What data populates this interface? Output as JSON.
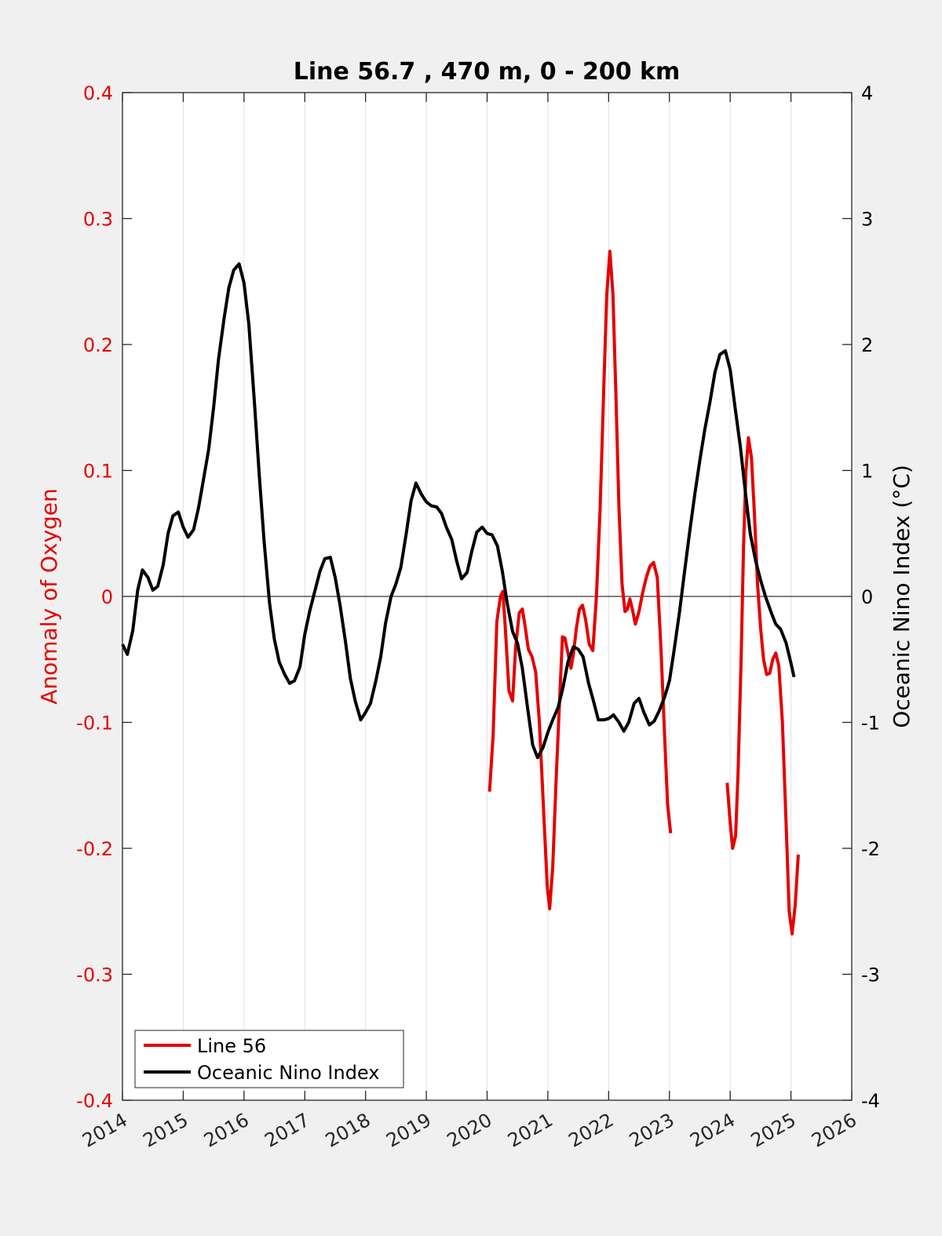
{
  "chart_data": {
    "type": "line",
    "title": "Line 56.7 , 470 m, 0 - 200 km",
    "ylabel_left": "Anomaly of Oxygen",
    "ylabel_right": "Oceanic Nino Index (°C)",
    "xlabel": "",
    "xlim": [
      2014,
      2026
    ],
    "ylim_left": [
      -0.4,
      0.4
    ],
    "ylim_right": [
      -4,
      4
    ],
    "x_ticks": [
      "2014",
      "2015",
      "2016",
      "2017",
      "2018",
      "2019",
      "2020",
      "2021",
      "2022",
      "2023",
      "2024",
      "2025",
      "2026"
    ],
    "y_ticks_left": [
      "0.4",
      "0.3",
      "0.2",
      "0.1",
      "0",
      "-0.1",
      "-0.2",
      "-0.3",
      "-0.4"
    ],
    "y_ticks_right": [
      "4",
      "3",
      "2",
      "1",
      "0",
      "-1",
      "-2",
      "-3",
      "-4"
    ],
    "grid": "vertical",
    "legend_position": "bottom-left",
    "colors": {
      "line56": "#e60000",
      "oni": "#000000",
      "left_axis": "#e60000"
    },
    "series": [
      {
        "name": "Line 56",
        "axis": "left",
        "color": "#e60000",
        "segments": [
          [
            [
              2020.04,
              -0.155
            ],
            [
              2020.1,
              -0.11
            ],
            [
              2020.16,
              -0.02
            ],
            [
              2020.22,
              0.0
            ],
            [
              2020.26,
              0.004
            ],
            [
              2020.3,
              -0.025
            ],
            [
              2020.36,
              -0.075
            ],
            [
              2020.42,
              -0.083
            ],
            [
              2020.47,
              -0.04
            ],
            [
              2020.53,
              -0.013
            ],
            [
              2020.58,
              -0.01
            ],
            [
              2020.62,
              -0.022
            ],
            [
              2020.68,
              -0.042
            ],
            [
              2020.74,
              -0.048
            ],
            [
              2020.8,
              -0.06
            ],
            [
              2020.86,
              -0.1
            ],
            [
              2020.93,
              -0.17
            ],
            [
              2020.99,
              -0.23
            ],
            [
              2021.03,
              -0.248
            ],
            [
              2021.08,
              -0.215
            ],
            [
              2021.14,
              -0.14
            ],
            [
              2021.2,
              -0.075
            ],
            [
              2021.24,
              -0.032
            ],
            [
              2021.28,
              -0.033
            ],
            [
              2021.33,
              -0.045
            ],
            [
              2021.38,
              -0.057
            ],
            [
              2021.42,
              -0.046
            ],
            [
              2021.47,
              -0.025
            ],
            [
              2021.52,
              -0.01
            ],
            [
              2021.57,
              -0.007
            ],
            [
              2021.62,
              -0.018
            ],
            [
              2021.68,
              -0.038
            ],
            [
              2021.74,
              -0.043
            ],
            [
              2021.8,
              -0.0
            ],
            [
              2021.86,
              0.07
            ],
            [
              2021.92,
              0.165
            ],
            [
              2021.97,
              0.24
            ],
            [
              2022.02,
              0.274
            ],
            [
              2022.07,
              0.24
            ],
            [
              2022.12,
              0.16
            ],
            [
              2022.17,
              0.07
            ],
            [
              2022.22,
              0.01
            ],
            [
              2022.27,
              -0.012
            ],
            [
              2022.31,
              -0.01
            ],
            [
              2022.35,
              -0.002
            ],
            [
              2022.39,
              -0.01
            ],
            [
              2022.44,
              -0.022
            ],
            [
              2022.5,
              -0.012
            ],
            [
              2022.56,
              0.003
            ],
            [
              2022.62,
              0.015
            ],
            [
              2022.68,
              0.024
            ],
            [
              2022.74,
              0.027
            ],
            [
              2022.8,
              0.015
            ],
            [
              2022.86,
              -0.04
            ],
            [
              2022.92,
              -0.11
            ],
            [
              2022.97,
              -0.165
            ],
            [
              2023.02,
              -0.188
            ]
          ],
          [
            [
              2023.95,
              -0.148
            ],
            [
              2024.0,
              -0.18
            ],
            [
              2024.04,
              -0.2
            ],
            [
              2024.09,
              -0.19
            ],
            [
              2024.13,
              -0.14
            ],
            [
              2024.18,
              -0.05
            ],
            [
              2024.22,
              0.04
            ],
            [
              2024.26,
              0.1
            ],
            [
              2024.3,
              0.126
            ],
            [
              2024.35,
              0.11
            ],
            [
              2024.4,
              0.065
            ],
            [
              2024.45,
              0.01
            ],
            [
              2024.5,
              -0.025
            ],
            [
              2024.55,
              -0.05
            ],
            [
              2024.6,
              -0.062
            ],
            [
              2024.65,
              -0.061
            ],
            [
              2024.7,
              -0.05
            ],
            [
              2024.75,
              -0.045
            ],
            [
              2024.8,
              -0.055
            ],
            [
              2024.86,
              -0.1
            ],
            [
              2024.92,
              -0.18
            ],
            [
              2024.97,
              -0.25
            ],
            [
              2025.02,
              -0.268
            ],
            [
              2025.07,
              -0.245
            ],
            [
              2025.12,
              -0.205
            ]
          ]
        ]
      },
      {
        "name": "Oceanic Nino Index",
        "axis": "right",
        "color": "#000000",
        "segments": [
          [
            [
              2014.0,
              -0.38
            ],
            [
              2014.08,
              -0.46
            ],
            [
              2014.17,
              -0.27
            ],
            [
              2014.25,
              0.05
            ],
            [
              2014.33,
              0.21
            ],
            [
              2014.42,
              0.15
            ],
            [
              2014.5,
              0.05
            ],
            [
              2014.58,
              0.08
            ],
            [
              2014.67,
              0.25
            ],
            [
              2014.75,
              0.5
            ],
            [
              2014.83,
              0.64
            ],
            [
              2014.92,
              0.67
            ],
            [
              2015.0,
              0.55
            ],
            [
              2015.08,
              0.47
            ],
            [
              2015.17,
              0.53
            ],
            [
              2015.25,
              0.7
            ],
            [
              2015.33,
              0.92
            ],
            [
              2015.42,
              1.17
            ],
            [
              2015.5,
              1.5
            ],
            [
              2015.58,
              1.88
            ],
            [
              2015.67,
              2.2
            ],
            [
              2015.75,
              2.45
            ],
            [
              2015.83,
              2.59
            ],
            [
              2015.92,
              2.64
            ],
            [
              2016.0,
              2.49
            ],
            [
              2016.08,
              2.16
            ],
            [
              2016.17,
              1.55
            ],
            [
              2016.25,
              0.97
            ],
            [
              2016.33,
              0.44
            ],
            [
              2016.42,
              -0.05
            ],
            [
              2016.5,
              -0.34
            ],
            [
              2016.58,
              -0.52
            ],
            [
              2016.67,
              -0.62
            ],
            [
              2016.75,
              -0.69
            ],
            [
              2016.83,
              -0.67
            ],
            [
              2016.92,
              -0.56
            ],
            [
              2017.0,
              -0.3
            ],
            [
              2017.08,
              -0.12
            ],
            [
              2017.17,
              0.05
            ],
            [
              2017.25,
              0.2
            ],
            [
              2017.33,
              0.3
            ],
            [
              2017.42,
              0.31
            ],
            [
              2017.5,
              0.15
            ],
            [
              2017.58,
              -0.07
            ],
            [
              2017.67,
              -0.36
            ],
            [
              2017.75,
              -0.65
            ],
            [
              2017.83,
              -0.83
            ],
            [
              2017.92,
              -0.98
            ],
            [
              2018.0,
              -0.92
            ],
            [
              2018.08,
              -0.85
            ],
            [
              2018.17,
              -0.67
            ],
            [
              2018.25,
              -0.48
            ],
            [
              2018.33,
              -0.21
            ],
            [
              2018.42,
              0.0
            ],
            [
              2018.5,
              0.1
            ],
            [
              2018.58,
              0.23
            ],
            [
              2018.67,
              0.5
            ],
            [
              2018.75,
              0.76
            ],
            [
              2018.83,
              0.9
            ],
            [
              2018.92,
              0.81
            ],
            [
              2019.0,
              0.75
            ],
            [
              2019.08,
              0.72
            ],
            [
              2019.17,
              0.71
            ],
            [
              2019.25,
              0.66
            ],
            [
              2019.33,
              0.55
            ],
            [
              2019.42,
              0.45
            ],
            [
              2019.5,
              0.28
            ],
            [
              2019.58,
              0.14
            ],
            [
              2019.67,
              0.19
            ],
            [
              2019.75,
              0.36
            ],
            [
              2019.83,
              0.51
            ],
            [
              2019.92,
              0.55
            ],
            [
              2020.0,
              0.5
            ],
            [
              2020.08,
              0.49
            ],
            [
              2020.17,
              0.4
            ],
            [
              2020.25,
              0.2
            ],
            [
              2020.33,
              -0.05
            ],
            [
              2020.42,
              -0.28
            ],
            [
              2020.5,
              -0.37
            ],
            [
              2020.58,
              -0.57
            ],
            [
              2020.67,
              -0.9
            ],
            [
              2020.75,
              -1.18
            ],
            [
              2020.83,
              -1.28
            ],
            [
              2020.92,
              -1.2
            ],
            [
              2021.0,
              -1.08
            ],
            [
              2021.08,
              -0.98
            ],
            [
              2021.17,
              -0.88
            ],
            [
              2021.25,
              -0.72
            ],
            [
              2021.33,
              -0.52
            ],
            [
              2021.42,
              -0.4
            ],
            [
              2021.5,
              -0.42
            ],
            [
              2021.58,
              -0.48
            ],
            [
              2021.67,
              -0.69
            ],
            [
              2021.75,
              -0.83
            ],
            [
              2021.83,
              -0.98
            ],
            [
              2021.92,
              -0.98
            ],
            [
              2022.0,
              -0.97
            ],
            [
              2022.08,
              -0.94
            ],
            [
              2022.17,
              -1.0
            ],
            [
              2022.25,
              -1.07
            ],
            [
              2022.33,
              -1.0
            ],
            [
              2022.42,
              -0.85
            ],
            [
              2022.5,
              -0.81
            ],
            [
              2022.58,
              -0.92
            ],
            [
              2022.67,
              -1.02
            ],
            [
              2022.75,
              -0.99
            ],
            [
              2022.83,
              -0.91
            ],
            [
              2022.92,
              -0.8
            ],
            [
              2023.0,
              -0.67
            ],
            [
              2023.08,
              -0.42
            ],
            [
              2023.17,
              -0.11
            ],
            [
              2023.25,
              0.2
            ],
            [
              2023.33,
              0.5
            ],
            [
              2023.42,
              0.82
            ],
            [
              2023.5,
              1.08
            ],
            [
              2023.58,
              1.32
            ],
            [
              2023.67,
              1.55
            ],
            [
              2023.75,
              1.78
            ],
            [
              2023.83,
              1.92
            ],
            [
              2023.92,
              1.95
            ],
            [
              2024.0,
              1.8
            ],
            [
              2024.08,
              1.5
            ],
            [
              2024.17,
              1.18
            ],
            [
              2024.25,
              0.83
            ],
            [
              2024.33,
              0.5
            ],
            [
              2024.42,
              0.28
            ],
            [
              2024.5,
              0.13
            ],
            [
              2024.58,
              0.0
            ],
            [
              2024.67,
              -0.12
            ],
            [
              2024.75,
              -0.22
            ],
            [
              2024.83,
              -0.26
            ],
            [
              2024.92,
              -0.37
            ],
            [
              2025.0,
              -0.53
            ],
            [
              2025.05,
              -0.64
            ]
          ]
        ]
      }
    ]
  }
}
